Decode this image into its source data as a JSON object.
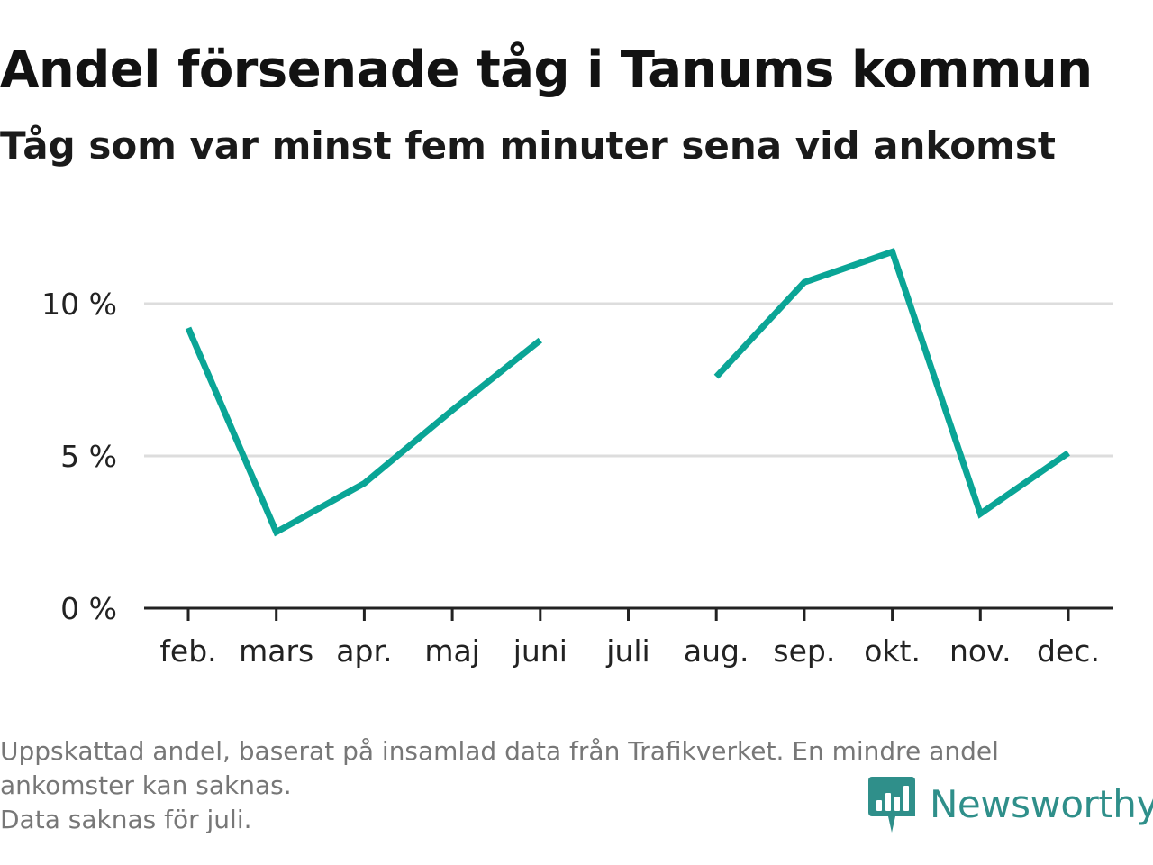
{
  "title": "Andel försenade tåg i Tanums kommun",
  "subtitle": "Tåg som var minst fem minuter sena vid ankomst",
  "chart_data": {
    "type": "line",
    "categories": [
      "feb.",
      "mars",
      "apr.",
      "maj",
      "juni",
      "juli",
      "aug.",
      "sep.",
      "okt.",
      "nov.",
      "dec."
    ],
    "series": [
      {
        "values": [
          9.2,
          2.5,
          4.1,
          6.5,
          8.8,
          null,
          7.6,
          10.7,
          11.7,
          3.1,
          5.1
        ]
      }
    ],
    "y_ticks": [
      0,
      5,
      10
    ],
    "y_tick_labels": [
      "0 %",
      "5 %",
      "10 %"
    ],
    "ylim": [
      0,
      12
    ],
    "grid": true,
    "line_color": "#0aa596"
  },
  "footnote": {
    "line1": "Uppskattad andel, baserat på insamlad data från Trafikverket. En mindre andel",
    "line2": "ankomster kan saknas.",
    "line3": "Data saknas för juli."
  },
  "brand": {
    "name": "Newsworthy",
    "icon": "newsworthy-logo-icon",
    "color": "#2f8f8a"
  }
}
